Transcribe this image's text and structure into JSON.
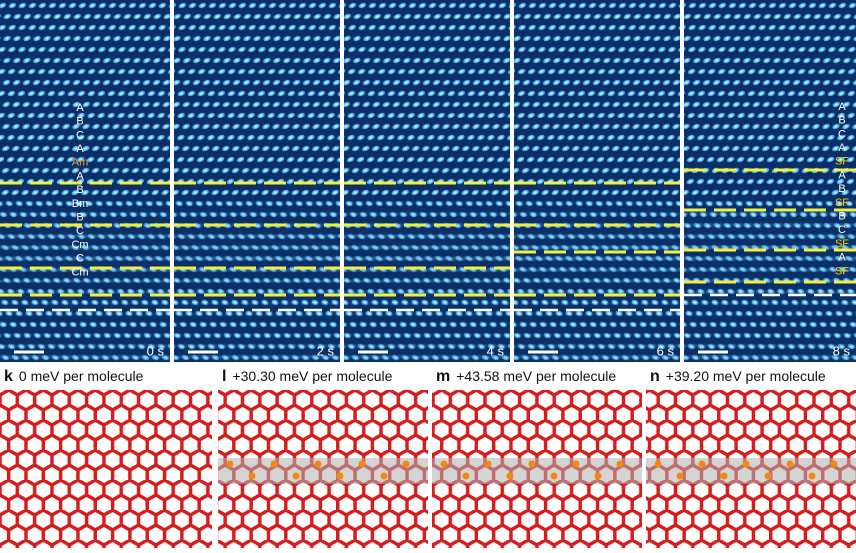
{
  "top_panels": [
    {
      "time": "0 s",
      "labels": [
        {
          "text": "A",
          "color": "#ffffff"
        },
        {
          "text": "B",
          "color": "#ffffff"
        },
        {
          "text": "C",
          "color": "#ffffff"
        },
        {
          "text": "A",
          "color": "#ffffff"
        },
        {
          "text": "Am",
          "color": "#f0a020"
        },
        {
          "text": "A",
          "color": "#ffffff"
        },
        {
          "text": "B",
          "color": "#ffffff"
        },
        {
          "text": "Bm",
          "color": "#ffffff"
        },
        {
          "text": "B",
          "color": "#ffffff"
        },
        {
          "text": "C",
          "color": "#ffffff"
        },
        {
          "text": "Cm",
          "color": "#ffffff"
        },
        {
          "text": "C",
          "color": "#ffffff"
        },
        {
          "text": "Cm",
          "color": "#ffffff"
        }
      ]
    },
    {
      "time": "2 s",
      "labels": []
    },
    {
      "time": "4 s",
      "labels": []
    },
    {
      "time": "6 s",
      "labels": []
    },
    {
      "time": "8 s",
      "labels": [
        {
          "text": "A",
          "color": "#ffffff"
        },
        {
          "text": "B",
          "color": "#ffffff"
        },
        {
          "text": "C",
          "color": "#ffffff"
        },
        {
          "text": "A",
          "color": "#ffffff"
        },
        {
          "text": "SF",
          "color": "#f5d000"
        },
        {
          "text": "A",
          "color": "#ffffff"
        },
        {
          "text": "B",
          "color": "#ffffff"
        },
        {
          "text": "SF",
          "color": "#f5d000"
        },
        {
          "text": "B",
          "color": "#ffffff"
        },
        {
          "text": "C",
          "color": "#ffffff"
        },
        {
          "text": "SF",
          "color": "#f5d000"
        },
        {
          "text": "A",
          "color": "#ffffff"
        },
        {
          "text": "SF",
          "color": "#f5d000"
        }
      ]
    }
  ],
  "bottom_panels": [
    {
      "letter": "k",
      "caption": "0 meV per molecule"
    },
    {
      "letter": "l",
      "caption": "+30.30 meV per molecule"
    },
    {
      "letter": "m",
      "caption": "+43.58 meV per molecule"
    },
    {
      "letter": "n",
      "caption": "+39.20 meV per molecule"
    }
  ]
}
